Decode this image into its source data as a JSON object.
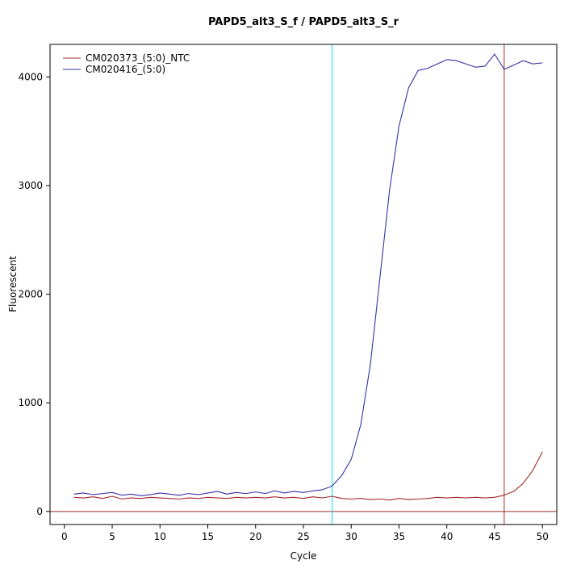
{
  "chart_data": {
    "type": "line",
    "title": "PAPD5_alt3_S_f / PAPD5_alt3_S_r",
    "xlabel": "Cycle",
    "ylabel": "Fluorescent",
    "xlim": [
      -1.5,
      51.5
    ],
    "ylim": [
      -120,
      4300
    ],
    "x_ticks": [
      0,
      5,
      10,
      15,
      20,
      25,
      30,
      35,
      40,
      45,
      50
    ],
    "y_ticks": [
      0,
      1000,
      2000,
      3000,
      4000
    ],
    "grid": false,
    "legend_position": "top-left",
    "x": [
      1,
      2,
      3,
      4,
      5,
      6,
      7,
      8,
      9,
      10,
      11,
      12,
      13,
      14,
      15,
      16,
      17,
      18,
      19,
      20,
      21,
      22,
      23,
      24,
      25,
      26,
      27,
      28,
      29,
      30,
      31,
      32,
      33,
      34,
      35,
      36,
      37,
      38,
      39,
      40,
      41,
      42,
      43,
      44,
      45,
      46,
      47,
      48,
      49,
      50
    ],
    "series": [
      {
        "name": "CM020373_(5:0)_NTC",
        "color": "#A52A2A",
        "values": [
          130,
          125,
          135,
          120,
          140,
          115,
          125,
          120,
          130,
          125,
          120,
          115,
          125,
          120,
          130,
          125,
          120,
          130,
          125,
          130,
          125,
          135,
          125,
          130,
          120,
          135,
          125,
          140,
          120,
          115,
          120,
          110,
          115,
          105,
          120,
          110,
          115,
          120,
          130,
          125,
          130,
          125,
          130,
          125,
          130,
          150,
          185,
          260,
          380,
          550
        ]
      },
      {
        "name": "CM020416_(5:0)",
        "color": "#3333AA",
        "values": [
          160,
          170,
          155,
          165,
          175,
          150,
          160,
          145,
          155,
          170,
          160,
          150,
          165,
          155,
          170,
          185,
          160,
          175,
          165,
          180,
          165,
          190,
          170,
          185,
          175,
          190,
          200,
          235,
          330,
          480,
          800,
          1350,
          2150,
          2950,
          3550,
          3900,
          4060,
          4080,
          4120,
          4160,
          4150,
          4120,
          4090,
          4100,
          4210,
          4070,
          4110,
          4150,
          4120,
          4130
        ]
      }
    ],
    "vlines": [
      {
        "x": 28,
        "color": "#00E5EE",
        "meaning": "threshold-cycle-marker-cyan"
      },
      {
        "x": 46,
        "color": "#A52A2A",
        "meaning": "threshold-cycle-marker-red"
      }
    ],
    "hlines": [
      {
        "y": 0,
        "color": "#A52A2A",
        "meaning": "baseline-threshold"
      }
    ]
  }
}
